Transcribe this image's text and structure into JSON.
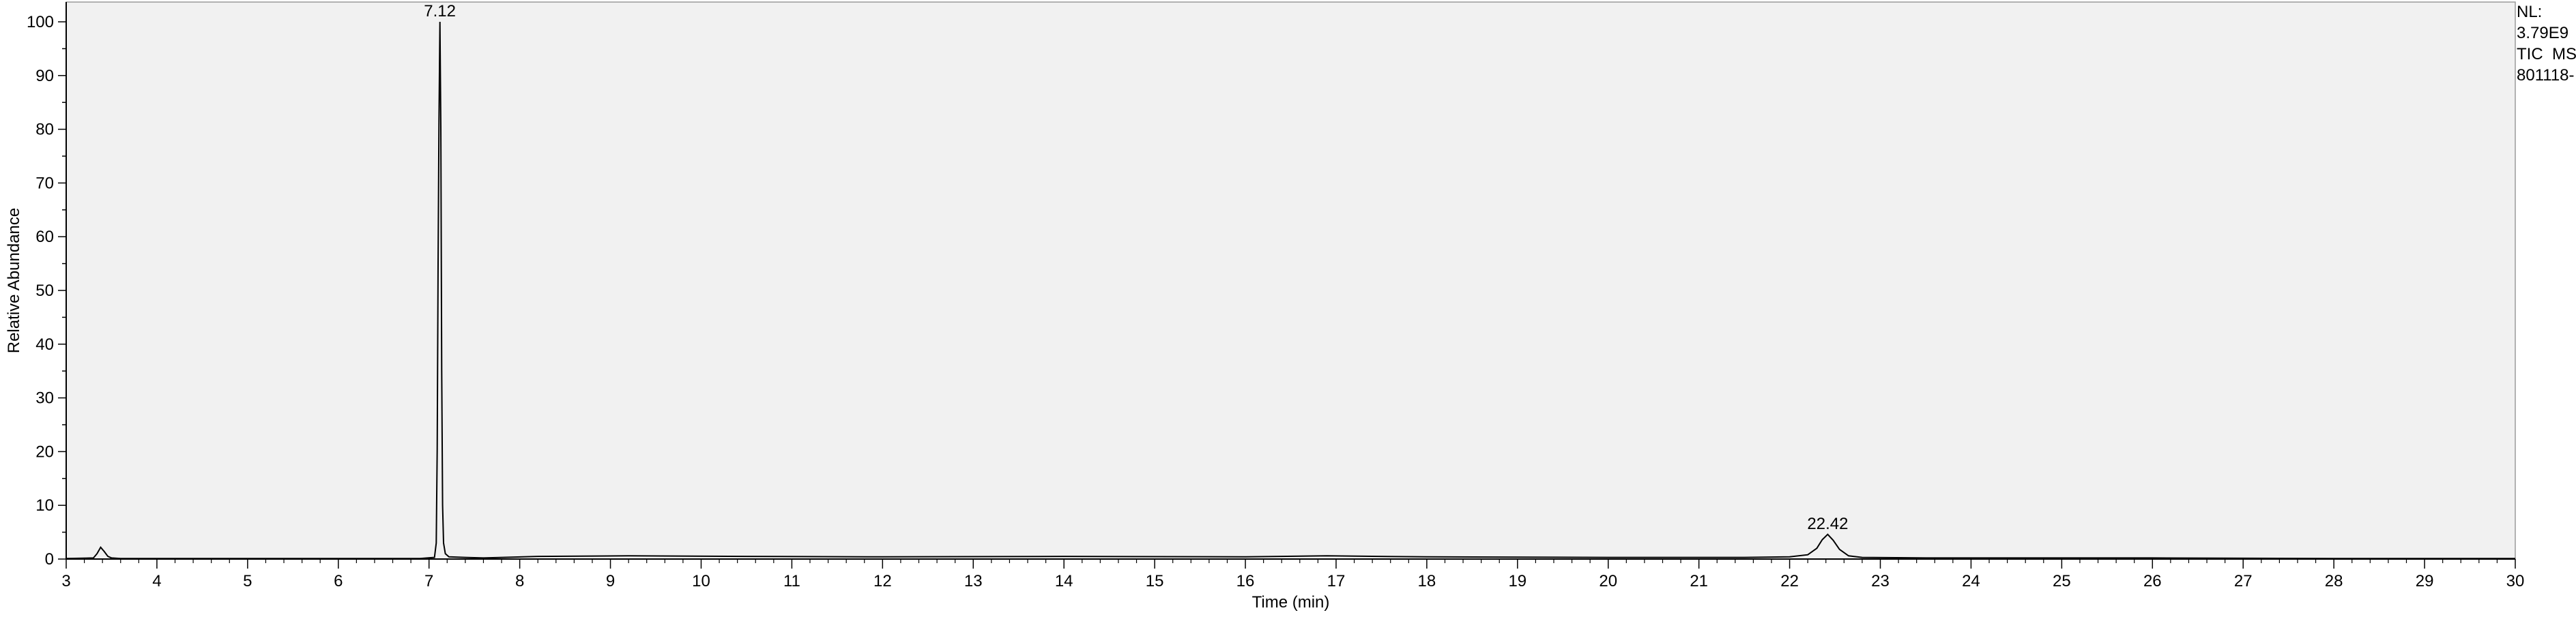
{
  "side_info": {
    "nl_label": "NL:",
    "nl_value": "3.79E9",
    "trace": "TIC  MS",
    "file": "801118-"
  },
  "chart_data": {
    "type": "line",
    "xlabel": "Time (min)",
    "ylabel": "Relative Abundance",
    "xlim": [
      3,
      30
    ],
    "ylim": [
      0,
      100
    ],
    "x_ticks": [
      3,
      4,
      5,
      6,
      7,
      8,
      9,
      10,
      11,
      12,
      13,
      14,
      15,
      16,
      17,
      18,
      19,
      20,
      21,
      22,
      23,
      24,
      25,
      26,
      27,
      28,
      29,
      30
    ],
    "y_ticks": [
      0,
      10,
      20,
      30,
      40,
      50,
      60,
      70,
      80,
      90,
      100
    ],
    "grid": false,
    "colors": {
      "line": "#000000",
      "plot_bg": "#f1f1f1",
      "frame": "#9a9a9a"
    },
    "peak_labels": [
      {
        "x": 7.12,
        "y": 100,
        "text": "7.12"
      },
      {
        "x": 22.42,
        "y": 4.6,
        "text": "22.42"
      }
    ],
    "series": [
      {
        "x": [
          3.0,
          3.3,
          3.34,
          3.38,
          3.42,
          3.46,
          3.5,
          3.6,
          5.0,
          6.9,
          7.06,
          7.08,
          7.09,
          7.1,
          7.11,
          7.12,
          7.13,
          7.14,
          7.15,
          7.16,
          7.18,
          7.22,
          7.4,
          7.6,
          8.2,
          9.2,
          10.5,
          12.0,
          14.0,
          16.0,
          16.9,
          18.0,
          20.0,
          21.5,
          22.0,
          22.2,
          22.3,
          22.36,
          22.42,
          22.48,
          22.55,
          22.65,
          22.8,
          23.5,
          26.0,
          28.0,
          30.0
        ],
        "y": [
          0.1,
          0.2,
          1.0,
          2.2,
          1.4,
          0.5,
          0.2,
          0.1,
          0.1,
          0.1,
          0.3,
          3.0,
          20.5,
          55.0,
          81.5,
          100.0,
          80.5,
          35.0,
          10.0,
          3.0,
          1.0,
          0.4,
          0.3,
          0.2,
          0.5,
          0.6,
          0.5,
          0.4,
          0.5,
          0.4,
          0.6,
          0.4,
          0.3,
          0.3,
          0.4,
          0.8,
          2.0,
          3.6,
          4.6,
          3.5,
          1.8,
          0.6,
          0.3,
          0.2,
          0.2,
          0.1,
          0.1
        ]
      }
    ]
  }
}
